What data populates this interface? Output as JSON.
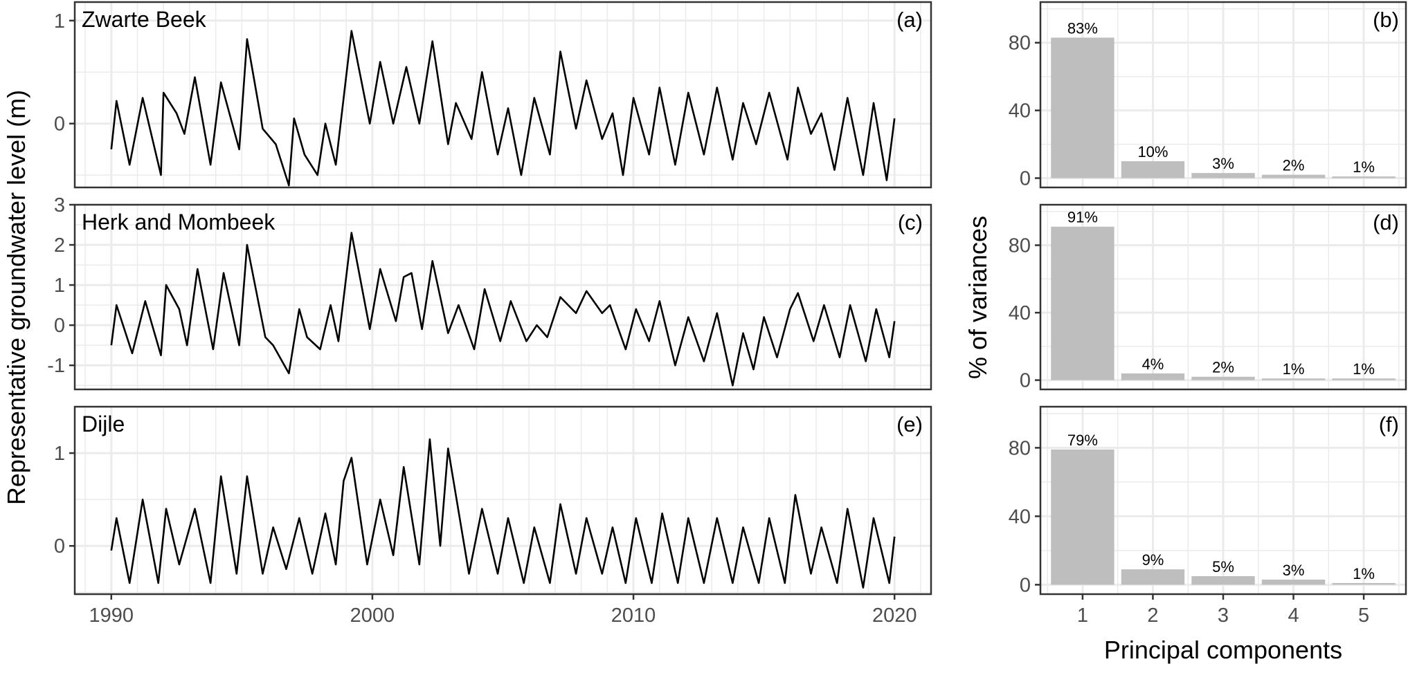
{
  "figure": {
    "left_ylabel": "Representative groundwater level (m)",
    "right_ylabel": "% of variances",
    "right_xlabel": "Principal components"
  },
  "chart_data": [
    {
      "type": "line",
      "panel": "(a)",
      "title": "Zwarte Beek",
      "xlim": [
        1988.6,
        2021.4
      ],
      "ylim": [
        -0.62,
        1.18
      ],
      "xticks": [
        1990,
        2000,
        2010,
        2020
      ],
      "yticks": [
        0,
        1
      ],
      "grid": true,
      "line_color": "#000000",
      "points": [
        [
          1990.0,
          -0.25
        ],
        [
          1990.2,
          0.22
        ],
        [
          1990.7,
          -0.4
        ],
        [
          1991.2,
          0.25
        ],
        [
          1991.9,
          -0.5
        ],
        [
          1992.0,
          0.3
        ],
        [
          1992.5,
          0.1
        ],
        [
          1992.8,
          -0.1
        ],
        [
          1993.2,
          0.45
        ],
        [
          1993.8,
          -0.4
        ],
        [
          1994.2,
          0.4
        ],
        [
          1994.9,
          -0.25
        ],
        [
          1995.2,
          0.82
        ],
        [
          1995.8,
          -0.05
        ],
        [
          1996.3,
          -0.2
        ],
        [
          1996.8,
          -0.6
        ],
        [
          1997.0,
          0.05
        ],
        [
          1997.4,
          -0.3
        ],
        [
          1997.9,
          -0.5
        ],
        [
          1998.2,
          0.0
        ],
        [
          1998.6,
          -0.4
        ],
        [
          1999.2,
          0.9
        ],
        [
          1999.9,
          0.0
        ],
        [
          2000.3,
          0.6
        ],
        [
          2000.8,
          0.0
        ],
        [
          2001.3,
          0.55
        ],
        [
          2001.8,
          0.0
        ],
        [
          2002.3,
          0.8
        ],
        [
          2002.9,
          -0.2
        ],
        [
          2003.2,
          0.2
        ],
        [
          2003.8,
          -0.15
        ],
        [
          2004.2,
          0.5
        ],
        [
          2004.8,
          -0.3
        ],
        [
          2005.2,
          0.15
        ],
        [
          2005.7,
          -0.5
        ],
        [
          2006.2,
          0.25
        ],
        [
          2006.8,
          -0.3
        ],
        [
          2007.2,
          0.7
        ],
        [
          2007.8,
          -0.05
        ],
        [
          2008.2,
          0.42
        ],
        [
          2008.8,
          -0.15
        ],
        [
          2009.2,
          0.1
        ],
        [
          2009.6,
          -0.5
        ],
        [
          2010.0,
          0.25
        ],
        [
          2010.6,
          -0.3
        ],
        [
          2011.0,
          0.35
        ],
        [
          2011.6,
          -0.4
        ],
        [
          2012.1,
          0.3
        ],
        [
          2012.7,
          -0.3
        ],
        [
          2013.2,
          0.35
        ],
        [
          2013.8,
          -0.35
        ],
        [
          2014.2,
          0.2
        ],
        [
          2014.7,
          -0.2
        ],
        [
          2015.2,
          0.3
        ],
        [
          2015.9,
          -0.35
        ],
        [
          2016.3,
          0.35
        ],
        [
          2016.8,
          -0.1
        ],
        [
          2017.2,
          0.1
        ],
        [
          2017.7,
          -0.45
        ],
        [
          2018.2,
          0.25
        ],
        [
          2018.8,
          -0.5
        ],
        [
          2019.2,
          0.2
        ],
        [
          2019.7,
          -0.55
        ],
        [
          2020.0,
          0.05
        ]
      ]
    },
    {
      "type": "line",
      "panel": "(c)",
      "title": "Herk and Mombeek",
      "xlim": [
        1988.6,
        2021.4
      ],
      "ylim": [
        -1.6,
        3.0
      ],
      "xticks": [
        1990,
        2000,
        2010,
        2020
      ],
      "yticks": [
        -1,
        0,
        1,
        2,
        3
      ],
      "grid": true,
      "line_color": "#000000",
      "points": [
        [
          1990.0,
          -0.5
        ],
        [
          1990.2,
          0.5
        ],
        [
          1990.8,
          -0.7
        ],
        [
          1991.3,
          0.6
        ],
        [
          1991.9,
          -0.75
        ],
        [
          1992.1,
          1.0
        ],
        [
          1992.6,
          0.4
        ],
        [
          1992.9,
          -0.5
        ],
        [
          1993.3,
          1.4
        ],
        [
          1993.9,
          -0.6
        ],
        [
          1994.3,
          1.3
        ],
        [
          1994.9,
          -0.5
        ],
        [
          1995.2,
          2.0
        ],
        [
          1995.9,
          -0.3
        ],
        [
          1996.2,
          -0.5
        ],
        [
          1996.8,
          -1.2
        ],
        [
          1997.2,
          0.4
        ],
        [
          1997.5,
          -0.3
        ],
        [
          1998.0,
          -0.6
        ],
        [
          1998.4,
          0.5
        ],
        [
          1998.7,
          -0.4
        ],
        [
          1999.2,
          2.3
        ],
        [
          1999.9,
          -0.1
        ],
        [
          2000.3,
          1.4
        ],
        [
          2000.9,
          0.1
        ],
        [
          2001.2,
          1.2
        ],
        [
          2001.5,
          1.3
        ],
        [
          2001.9,
          -0.1
        ],
        [
          2002.3,
          1.6
        ],
        [
          2002.9,
          -0.2
        ],
        [
          2003.3,
          0.5
        ],
        [
          2003.9,
          -0.6
        ],
        [
          2004.3,
          0.9
        ],
        [
          2004.9,
          -0.4
        ],
        [
          2005.3,
          0.6
        ],
        [
          2005.9,
          -0.4
        ],
        [
          2006.3,
          0.0
        ],
        [
          2006.7,
          -0.3
        ],
        [
          2007.2,
          0.7
        ],
        [
          2007.8,
          0.3
        ],
        [
          2008.2,
          0.85
        ],
        [
          2008.8,
          0.3
        ],
        [
          2009.1,
          0.5
        ],
        [
          2009.7,
          -0.6
        ],
        [
          2010.1,
          0.4
        ],
        [
          2010.6,
          -0.4
        ],
        [
          2011.0,
          0.6
        ],
        [
          2011.6,
          -1.0
        ],
        [
          2012.1,
          0.2
        ],
        [
          2012.7,
          -0.9
        ],
        [
          2013.2,
          0.3
        ],
        [
          2013.8,
          -1.5
        ],
        [
          2014.2,
          -0.2
        ],
        [
          2014.6,
          -1.1
        ],
        [
          2015.0,
          0.2
        ],
        [
          2015.5,
          -0.8
        ],
        [
          2016.0,
          0.4
        ],
        [
          2016.3,
          0.8
        ],
        [
          2016.9,
          -0.4
        ],
        [
          2017.3,
          0.5
        ],
        [
          2017.9,
          -0.8
        ],
        [
          2018.3,
          0.5
        ],
        [
          2018.9,
          -0.9
        ],
        [
          2019.3,
          0.4
        ],
        [
          2019.8,
          -0.8
        ],
        [
          2020.0,
          0.1
        ]
      ]
    },
    {
      "type": "line",
      "panel": "(e)",
      "title": "Dijle",
      "xlim": [
        1988.6,
        2021.4
      ],
      "ylim": [
        -0.52,
        1.5
      ],
      "xticks": [
        1990,
        2000,
        2010,
        2020
      ],
      "yticks": [
        0,
        1
      ],
      "grid": true,
      "line_color": "#000000",
      "points": [
        [
          1990.0,
          -0.05
        ],
        [
          1990.2,
          0.3
        ],
        [
          1990.7,
          -0.4
        ],
        [
          1991.2,
          0.5
        ],
        [
          1991.8,
          -0.4
        ],
        [
          1992.1,
          0.4
        ],
        [
          1992.6,
          -0.2
        ],
        [
          1993.2,
          0.4
        ],
        [
          1993.8,
          -0.4
        ],
        [
          1994.2,
          0.75
        ],
        [
          1994.8,
          -0.3
        ],
        [
          1995.2,
          0.75
        ],
        [
          1995.8,
          -0.3
        ],
        [
          1996.2,
          0.2
        ],
        [
          1996.7,
          -0.25
        ],
        [
          1997.2,
          0.3
        ],
        [
          1997.7,
          -0.3
        ],
        [
          1998.2,
          0.35
        ],
        [
          1998.6,
          -0.2
        ],
        [
          1998.9,
          0.7
        ],
        [
          1999.2,
          0.95
        ],
        [
          1999.8,
          -0.2
        ],
        [
          2000.3,
          0.5
        ],
        [
          2000.8,
          -0.1
        ],
        [
          2001.2,
          0.85
        ],
        [
          2001.8,
          -0.2
        ],
        [
          2002.2,
          1.15
        ],
        [
          2002.6,
          0.0
        ],
        [
          2002.9,
          1.05
        ],
        [
          2003.7,
          -0.3
        ],
        [
          2004.2,
          0.4
        ],
        [
          2004.8,
          -0.3
        ],
        [
          2005.2,
          0.3
        ],
        [
          2005.8,
          -0.4
        ],
        [
          2006.2,
          0.2
        ],
        [
          2006.8,
          -0.4
        ],
        [
          2007.2,
          0.45
        ],
        [
          2007.8,
          -0.3
        ],
        [
          2008.2,
          0.3
        ],
        [
          2008.8,
          -0.3
        ],
        [
          2009.2,
          0.2
        ],
        [
          2009.7,
          -0.4
        ],
        [
          2010.1,
          0.3
        ],
        [
          2010.7,
          -0.4
        ],
        [
          2011.1,
          0.35
        ],
        [
          2011.7,
          -0.4
        ],
        [
          2012.1,
          0.3
        ],
        [
          2012.7,
          -0.4
        ],
        [
          2013.2,
          0.3
        ],
        [
          2013.8,
          -0.4
        ],
        [
          2014.2,
          0.2
        ],
        [
          2014.8,
          -0.4
        ],
        [
          2015.2,
          0.3
        ],
        [
          2015.8,
          -0.4
        ],
        [
          2016.2,
          0.55
        ],
        [
          2016.8,
          -0.3
        ],
        [
          2017.2,
          0.2
        ],
        [
          2017.8,
          -0.4
        ],
        [
          2018.2,
          0.4
        ],
        [
          2018.8,
          -0.45
        ],
        [
          2019.2,
          0.3
        ],
        [
          2019.8,
          -0.4
        ],
        [
          2020.0,
          0.1
        ]
      ]
    },
    {
      "type": "bar",
      "panel": "(b)",
      "categories": [
        "1",
        "2",
        "3",
        "4",
        "5"
      ],
      "values": [
        83,
        10,
        3,
        2,
        1
      ],
      "labels": [
        "83%",
        "10%",
        "3%",
        "2%",
        "1%"
      ],
      "ylim": [
        -5.5,
        104
      ],
      "yticks": [
        0,
        40,
        80
      ],
      "grid": true,
      "bar_color": "#bebebe"
    },
    {
      "type": "bar",
      "panel": "(d)",
      "categories": [
        "1",
        "2",
        "3",
        "4",
        "5"
      ],
      "values": [
        91,
        4,
        2,
        1,
        1
      ],
      "labels": [
        "91%",
        "4%",
        "2%",
        "1%",
        "1%"
      ],
      "ylim": [
        -5.5,
        104
      ],
      "yticks": [
        0,
        40,
        80
      ],
      "grid": true,
      "bar_color": "#bebebe"
    },
    {
      "type": "bar",
      "panel": "(f)",
      "categories": [
        "1",
        "2",
        "3",
        "4",
        "5"
      ],
      "values": [
        79,
        9,
        5,
        3,
        1
      ],
      "labels": [
        "79%",
        "9%",
        "5%",
        "3%",
        "1%"
      ],
      "ylim": [
        -5.5,
        104
      ],
      "yticks": [
        0,
        40,
        80
      ],
      "grid": true,
      "bar_color": "#bebebe"
    }
  ]
}
